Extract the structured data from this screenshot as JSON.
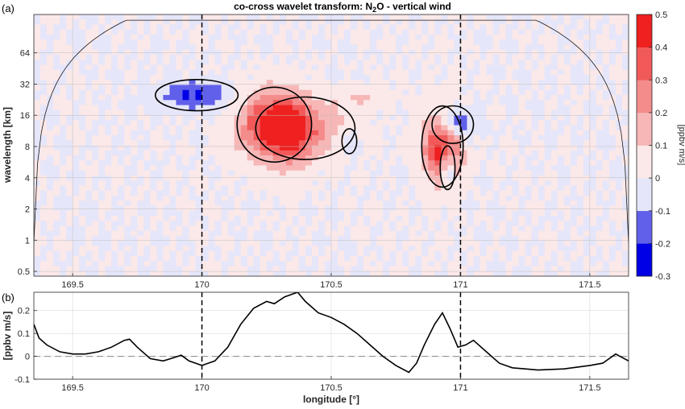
{
  "figure": {
    "panel_a_label": "(a)",
    "panel_b_label": "(b)"
  },
  "chart_data": [
    {
      "type": "heatmap",
      "title_prefix": "co-cross wavelet transform: N",
      "title_sub": "2",
      "title_suffix": "O - vertical wind",
      "ylabel": "wavelength [km]",
      "x_ticks": [
        169.5,
        170,
        170.5,
        171,
        171.5
      ],
      "xlim": [
        169.35,
        171.65
      ],
      "y_scale": "log2",
      "y_ticks": [
        0.5,
        1,
        2,
        4,
        8,
        16,
        32,
        64
      ],
      "y_tick_labels": [
        "0.5",
        "1",
        "2",
        "4",
        "8",
        "16",
        "32",
        "64"
      ],
      "ylim": [
        0.45,
        150
      ],
      "vertical_lines": [
        170,
        171
      ],
      "grid": true,
      "colorbar": {
        "label": "[ppbv m/s]",
        "ticks": [
          -0.3,
          -0.2,
          -0.1,
          0,
          0.1,
          0.2,
          0.3,
          0.4,
          0.5
        ],
        "tick_labels": [
          "-0.3",
          "-0.2",
          "-0.1",
          "0",
          "0.1",
          "0.2",
          "0.3",
          "0.4",
          "0.5"
        ],
        "range": [
          -0.3,
          0.5
        ],
        "colors": [
          "#0000e6",
          "#6060ea",
          "#e6e6fa",
          "#fbe8e8",
          "#f7b7b7",
          "#f48c8c",
          "#f25a5a",
          "#ee2020"
        ]
      },
      "features": [
        {
          "x": 170.28,
          "wavelength": 13,
          "value": 0.45,
          "sx": 0.09,
          "sy": 0.12
        },
        {
          "x": 170.4,
          "wavelength": 12,
          "value": 0.18,
          "sx": 0.12,
          "sy": 0.1
        },
        {
          "x": 170.35,
          "wavelength": 9,
          "value": 0.12,
          "sx": 0.06,
          "sy": 0.13
        },
        {
          "x": 170.93,
          "wavelength": 8,
          "value": 0.5,
          "sx": 0.05,
          "sy": 0.13
        },
        {
          "x": 170.97,
          "wavelength": 13,
          "value": -0.3,
          "sx": 0.05,
          "sy": 0.06
        },
        {
          "x": 170.95,
          "wavelength": 5,
          "value": -0.3,
          "sx": 0.018,
          "sy": 0.07
        },
        {
          "x": 170.57,
          "wavelength": 9,
          "value": -0.18,
          "sx": 0.018,
          "sy": 0.04
        },
        {
          "x": 169.98,
          "wavelength": 25,
          "value": -0.22,
          "sx": 0.1,
          "sy": 0.05
        },
        {
          "x": 170.63,
          "wavelength": 24,
          "value": 0.1,
          "sx": 0.07,
          "sy": 0.04
        }
      ]
    },
    {
      "type": "line",
      "xlabel": "longitude [°]",
      "ylabel": "[ppbv m/s]",
      "x_ticks": [
        169.5,
        170,
        170.5,
        171,
        171.5
      ],
      "y_ticks": [
        -0.1,
        0,
        0.1,
        0.2
      ],
      "y_tick_labels": [
        "-0.1",
        "0",
        "0.1",
        "0.2"
      ],
      "xlim": [
        169.35,
        171.65
      ],
      "ylim": [
        -0.1,
        0.28
      ],
      "vertical_lines": [
        170,
        171
      ],
      "reference_line": 0,
      "grid": true,
      "series": [
        {
          "x": [
            169.35,
            169.37,
            169.4,
            169.45,
            169.5,
            169.55,
            169.6,
            169.65,
            169.7,
            169.72,
            169.75,
            169.8,
            169.85,
            169.88,
            169.92,
            169.95,
            170.0,
            170.05,
            170.1,
            170.15,
            170.2,
            170.25,
            170.28,
            170.32,
            170.37,
            170.4,
            170.45,
            170.5,
            170.55,
            170.6,
            170.65,
            170.7,
            170.75,
            170.8,
            170.83,
            170.86,
            170.9,
            170.93,
            170.96,
            170.99,
            171.02,
            171.05,
            171.1,
            171.15,
            171.2,
            171.3,
            171.4,
            171.5,
            171.55,
            171.6,
            171.65
          ],
          "y": [
            0.14,
            0.08,
            0.05,
            0.02,
            0.01,
            0.01,
            0.02,
            0.04,
            0.07,
            0.075,
            0.04,
            -0.01,
            -0.02,
            -0.01,
            0.005,
            -0.02,
            -0.04,
            -0.02,
            0.04,
            0.14,
            0.21,
            0.24,
            0.23,
            0.26,
            0.28,
            0.24,
            0.19,
            0.17,
            0.14,
            0.1,
            0.05,
            0.0,
            -0.04,
            -0.07,
            -0.03,
            0.05,
            0.14,
            0.19,
            0.12,
            0.04,
            0.05,
            0.07,
            0.02,
            -0.03,
            -0.05,
            -0.06,
            -0.055,
            -0.04,
            -0.03,
            0.01,
            -0.02
          ]
        }
      ]
    }
  ]
}
